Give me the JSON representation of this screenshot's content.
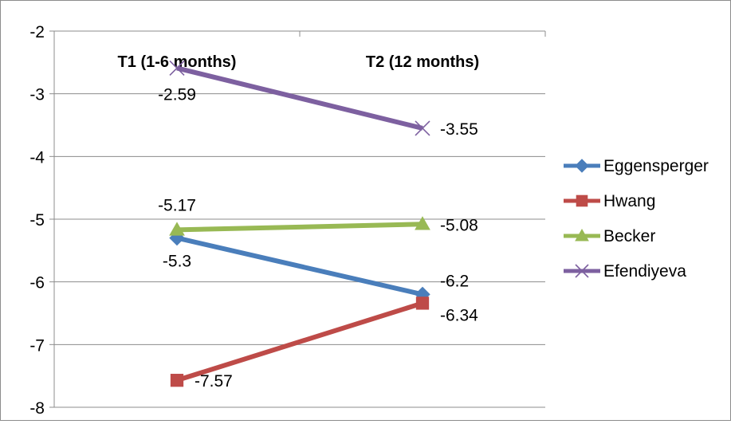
{
  "chart_data": {
    "type": "line",
    "categories": [
      "T1 (1-6 months)",
      "T2 (12 months)"
    ],
    "ylim": [
      -8,
      -2
    ],
    "yticks": [
      "-2",
      "-3",
      "-4",
      "-5",
      "-6",
      "-7",
      "-8"
    ],
    "grid": "horizontal",
    "legend_position": "right",
    "series": [
      {
        "name": "Eggensperger",
        "values": [
          -5.3,
          -6.2
        ],
        "labels": [
          "-5.3",
          "-6.2"
        ],
        "color": "#4a7ebb",
        "marker": "diamond"
      },
      {
        "name": "Hwang",
        "values": [
          -7.57,
          -6.34
        ],
        "labels": [
          "-7.57",
          "-6.34"
        ],
        "color": "#be4b48",
        "marker": "square"
      },
      {
        "name": "Becker",
        "values": [
          -5.17,
          -5.08
        ],
        "labels": [
          "-5.17",
          "-5.08"
        ],
        "color": "#98b954",
        "marker": "triangle"
      },
      {
        "name": "Efendiyeva",
        "values": [
          -2.59,
          -3.55
        ],
        "labels": [
          "-2.59",
          "-3.55"
        ],
        "color": "#7d60a0",
        "marker": "x"
      }
    ]
  }
}
